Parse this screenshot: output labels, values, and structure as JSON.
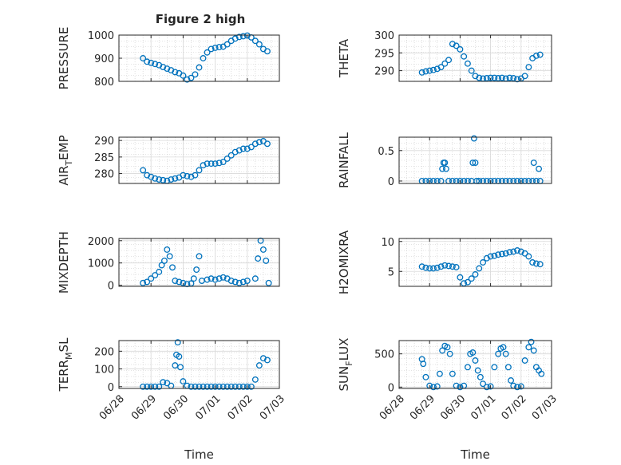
{
  "figure": {
    "title": "Figure 2 high"
  },
  "chart_data": [
    {
      "id": "pressure",
      "type": "scatter",
      "title": "Figure 2 high",
      "ylabel": "PRESSURE",
      "ylabel_sub": "",
      "xlabel": "",
      "xlim": [
        "2019-06-28",
        "2019-07-03"
      ],
      "ylim": [
        800,
        1000
      ],
      "yticks": [
        800,
        900,
        1000
      ],
      "xticks_visible": false,
      "grid": true,
      "x": [
        "06-28 18:00",
        "06-28 21:00",
        "06-29 00:00",
        "06-29 03:00",
        "06-29 06:00",
        "06-29 09:00",
        "06-29 12:00",
        "06-29 15:00",
        "06-29 18:00",
        "06-29 21:00",
        "06-30 00:00",
        "06-30 03:00",
        "06-30 06:00",
        "06-30 09:00",
        "06-30 12:00",
        "06-30 15:00",
        "06-30 18:00",
        "06-30 21:00",
        "07-01 00:00",
        "07-01 03:00",
        "07-01 06:00",
        "07-01 09:00",
        "07-01 12:00",
        "07-01 15:00",
        "07-01 18:00",
        "07-01 21:00",
        "07-02 00:00",
        "07-02 03:00",
        "07-02 06:00",
        "07-02 09:00",
        "07-02 12:00",
        "07-02 15:00"
      ],
      "y": [
        900,
        885,
        880,
        875,
        870,
        862,
        855,
        848,
        840,
        835,
        825,
        808,
        815,
        830,
        860,
        900,
        925,
        940,
        945,
        948,
        950,
        960,
        975,
        985,
        992,
        995,
        998,
        990,
        975,
        960,
        940,
        930
      ]
    },
    {
      "id": "theta",
      "type": "scatter",
      "ylabel": "THETA",
      "ylabel_sub": "",
      "xlabel": "",
      "xlim": [
        "2019-06-28",
        "2019-07-03"
      ],
      "ylim": [
        287,
        300
      ],
      "yticks": [
        290,
        295,
        300
      ],
      "xticks_visible": false,
      "grid": true,
      "x": [
        "06-28 18:00",
        "06-28 21:00",
        "06-29 00:00",
        "06-29 03:00",
        "06-29 06:00",
        "06-29 09:00",
        "06-29 12:00",
        "06-29 15:00",
        "06-29 18:00",
        "06-29 21:00",
        "06-30 00:00",
        "06-30 03:00",
        "06-30 06:00",
        "06-30 09:00",
        "06-30 12:00",
        "06-30 15:00",
        "06-30 18:00",
        "06-30 21:00",
        "07-01 00:00",
        "07-01 03:00",
        "07-01 06:00",
        "07-01 09:00",
        "07-01 12:00",
        "07-01 15:00",
        "07-01 18:00",
        "07-01 21:00",
        "07-02 00:00",
        "07-02 03:00",
        "07-02 06:00",
        "07-02 09:00",
        "07-02 12:00",
        "07-02 15:00"
      ],
      "y": [
        289.5,
        289.8,
        290.0,
        290.2,
        290.5,
        291.0,
        292.0,
        293.0,
        297.5,
        297.0,
        296.0,
        294.0,
        292.0,
        290.0,
        288.5,
        288.0,
        287.8,
        287.9,
        288.0,
        288.0,
        287.9,
        288.0,
        287.8,
        288.0,
        287.9,
        287.6,
        287.8,
        288.5,
        291.0,
        293.5,
        294.2,
        294.5
      ]
    },
    {
      "id": "air_temp",
      "type": "scatter",
      "ylabel": "AIR",
      "ylabel_sub": "T",
      "ylabel_suffix": "EMP",
      "xlabel": "",
      "xlim": [
        "2019-06-28",
        "2019-07-03"
      ],
      "ylim": [
        277,
        291
      ],
      "yticks": [
        280,
        285,
        290
      ],
      "xticks_visible": false,
      "grid": true,
      "x": [
        "06-28 18:00",
        "06-28 21:00",
        "06-29 00:00",
        "06-29 03:00",
        "06-29 06:00",
        "06-29 09:00",
        "06-29 12:00",
        "06-29 15:00",
        "06-29 18:00",
        "06-29 21:00",
        "06-30 00:00",
        "06-30 03:00",
        "06-30 06:00",
        "06-30 09:00",
        "06-30 12:00",
        "06-30 15:00",
        "06-30 18:00",
        "06-30 21:00",
        "07-01 00:00",
        "07-01 03:00",
        "07-01 06:00",
        "07-01 09:00",
        "07-01 12:00",
        "07-01 15:00",
        "07-01 18:00",
        "07-01 21:00",
        "07-02 00:00",
        "07-02 03:00",
        "07-02 06:00",
        "07-02 09:00",
        "07-02 12:00",
        "07-02 15:00"
      ],
      "y": [
        281.0,
        279.5,
        279.0,
        278.5,
        278.2,
        278.0,
        277.8,
        278.2,
        278.5,
        278.8,
        279.5,
        279.2,
        279.0,
        279.5,
        281.0,
        282.5,
        283.0,
        283.0,
        283.0,
        283.2,
        283.5,
        284.5,
        285.5,
        286.5,
        287.0,
        287.5,
        287.5,
        288.0,
        289.0,
        289.5,
        289.8,
        289.0
      ]
    },
    {
      "id": "rainfall",
      "type": "scatter",
      "ylabel": "RAINFALL",
      "ylabel_sub": "",
      "xlabel": "",
      "xlim": [
        "2019-06-28",
        "2019-07-03"
      ],
      "ylim": [
        -0.04,
        0.72
      ],
      "yticks": [
        0,
        0.5
      ],
      "ytick_labels": [
        "0",
        "0.5"
      ],
      "xticks_visible": false,
      "grid": true,
      "x": [
        "06-28 18:00",
        "06-28 21:00",
        "06-29 00:00",
        "06-29 03:00",
        "06-29 06:00",
        "06-29 09:00",
        "06-29 10:00",
        "06-29 11:00",
        "06-29 12:00",
        "06-29 13:00",
        "06-29 15:00",
        "06-29 18:00",
        "06-29 21:00",
        "06-30 00:00",
        "06-30 03:00",
        "06-30 06:00",
        "06-30 09:00",
        "06-30 10:00",
        "06-30 11:00",
        "06-30 12:00",
        "06-30 13:00",
        "06-30 15:00",
        "06-30 18:00",
        "06-30 21:00",
        "07-01 00:00",
        "07-01 03:00",
        "07-01 06:00",
        "07-01 09:00",
        "07-01 12:00",
        "07-01 15:00",
        "07-01 18:00",
        "07-01 21:00",
        "07-02 00:00",
        "07-02 03:00",
        "07-02 06:00",
        "07-02 09:00",
        "07-02 12:00",
        "07-02 15:00",
        "07-02 10:00",
        "07-02 14:00"
      ],
      "y": [
        0,
        0,
        0,
        0,
        0,
        0,
        0.2,
        0.3,
        0.3,
        0.2,
        0,
        0,
        0,
        0,
        0,
        0,
        0,
        0.3,
        0.7,
        0.3,
        0,
        0,
        0,
        0,
        0,
        0,
        0,
        0,
        0,
        0,
        0,
        0,
        0,
        0,
        0,
        0,
        0,
        0,
        0.3,
        0.2
      ]
    },
    {
      "id": "mixdepth",
      "type": "scatter",
      "ylabel": "MIXDEPTH",
      "ylabel_sub": "",
      "xlabel": "",
      "xlim": [
        "2019-06-28",
        "2019-07-03"
      ],
      "ylim": [
        -50,
        2100
      ],
      "yticks": [
        0,
        1000,
        2000
      ],
      "xticks_visible": false,
      "grid": true,
      "x": [
        "06-28 18:00",
        "06-28 21:00",
        "06-29 00:00",
        "06-29 03:00",
        "06-29 06:00",
        "06-29 08:00",
        "06-29 10:00",
        "06-29 12:00",
        "06-29 14:00",
        "06-29 16:00",
        "06-29 18:00",
        "06-29 21:00",
        "06-30 00:00",
        "06-30 03:00",
        "06-30 06:00",
        "06-30 08:00",
        "06-30 10:00",
        "06-30 12:00",
        "06-30 14:00",
        "06-30 18:00",
        "06-30 21:00",
        "07-01 00:00",
        "07-01 03:00",
        "07-01 06:00",
        "07-01 09:00",
        "07-01 12:00",
        "07-01 15:00",
        "07-01 18:00",
        "07-01 21:00",
        "07-02 00:00",
        "07-02 06:00",
        "07-02 08:00",
        "07-02 10:00",
        "07-02 12:00",
        "07-02 14:00",
        "07-02 16:00"
      ],
      "y": [
        100,
        150,
        300,
        450,
        600,
        900,
        1100,
        1600,
        1300,
        800,
        200,
        150,
        100,
        50,
        80,
        300,
        700,
        1300,
        200,
        250,
        300,
        250,
        300,
        350,
        300,
        200,
        150,
        100,
        150,
        200,
        300,
        1200,
        2000,
        1600,
        1100,
        100
      ]
    },
    {
      "id": "h2omixra",
      "type": "scatter",
      "ylabel": "H2OMIXRA",
      "ylabel_sub": "",
      "xlabel": "",
      "xlim": [
        "2019-06-28",
        "2019-07-03"
      ],
      "ylim": [
        2.5,
        10.5
      ],
      "yticks": [
        5,
        10
      ],
      "xticks_visible": false,
      "grid": true,
      "x": [
        "06-28 18:00",
        "06-28 21:00",
        "06-29 00:00",
        "06-29 03:00",
        "06-29 06:00",
        "06-29 09:00",
        "06-29 12:00",
        "06-29 15:00",
        "06-29 18:00",
        "06-29 21:00",
        "06-30 00:00",
        "06-30 03:00",
        "06-30 06:00",
        "06-30 09:00",
        "06-30 12:00",
        "06-30 15:00",
        "06-30 18:00",
        "06-30 21:00",
        "07-01 00:00",
        "07-01 03:00",
        "07-01 06:00",
        "07-01 09:00",
        "07-01 12:00",
        "07-01 15:00",
        "07-01 18:00",
        "07-01 21:00",
        "07-02 00:00",
        "07-02 03:00",
        "07-02 06:00",
        "07-02 09:00",
        "07-02 12:00",
        "07-02 15:00"
      ],
      "y": [
        5.8,
        5.6,
        5.5,
        5.5,
        5.6,
        5.8,
        6.0,
        5.9,
        5.8,
        5.7,
        4.0,
        3.0,
        3.2,
        3.8,
        4.5,
        5.5,
        6.5,
        7.2,
        7.5,
        7.6,
        7.8,
        7.9,
        8.0,
        8.2,
        8.3,
        8.5,
        8.3,
        8.0,
        7.5,
        6.5,
        6.3,
        6.2
      ]
    },
    {
      "id": "terr_msl",
      "type": "scatter",
      "ylabel": "TERR",
      "ylabel_sub": "M",
      "ylabel_suffix": "SL",
      "xlabel": "Time",
      "xlim": [
        "2019-06-28",
        "2019-07-03"
      ],
      "ylim": [
        -10,
        260
      ],
      "yticks": [
        0,
        100,
        200
      ],
      "xticks_visible": true,
      "grid": true,
      "xtick_labels": [
        "06/28",
        "06/29",
        "06/30",
        "07/01",
        "07/02",
        "07/03"
      ],
      "x": [
        "06-28 18:00",
        "06-28 21:00",
        "06-29 00:00",
        "06-29 03:00",
        "06-29 06:00",
        "06-29 09:00",
        "06-29 12:00",
        "06-29 15:00",
        "06-29 18:00",
        "06-29 19:00",
        "06-29 20:00",
        "06-29 21:00",
        "06-29 22:00",
        "06-30 00:00",
        "06-30 03:00",
        "06-30 06:00",
        "06-30 09:00",
        "06-30 12:00",
        "06-30 15:00",
        "06-30 18:00",
        "06-30 21:00",
        "07-01 00:00",
        "07-01 03:00",
        "07-01 06:00",
        "07-01 09:00",
        "07-01 12:00",
        "07-01 15:00",
        "07-01 18:00",
        "07-01 21:00",
        "07-02 00:00",
        "07-02 03:00",
        "07-02 06:00",
        "07-02 09:00",
        "07-02 12:00",
        "07-02 15:00"
      ],
      "y": [
        0,
        0,
        0,
        0,
        0,
        25,
        20,
        5,
        120,
        180,
        250,
        170,
        110,
        30,
        5,
        0,
        0,
        0,
        0,
        0,
        0,
        0,
        0,
        0,
        0,
        0,
        0,
        0,
        0,
        0,
        0,
        40,
        120,
        160,
        150
      ]
    },
    {
      "id": "sun_flux",
      "type": "scatter",
      "ylabel": "SUN",
      "ylabel_sub": "F",
      "ylabel_suffix": "LUX",
      "xlabel": "Time",
      "xlim": [
        "2019-06-28",
        "2019-07-03"
      ],
      "ylim": [
        -20,
        700
      ],
      "yticks": [
        0,
        500
      ],
      "xticks_visible": true,
      "grid": true,
      "xtick_labels": [
        "06/28",
        "06/29",
        "06/30",
        "07/01",
        "07/02",
        "07/03"
      ],
      "x": [
        "06-28 18:00",
        "06-28 19:00",
        "06-28 21:00",
        "06-29 00:00",
        "06-29 03:00",
        "06-29 06:00",
        "06-29 08:00",
        "06-29 10:00",
        "06-29 12:00",
        "06-29 14:00",
        "06-29 16:00",
        "06-29 18:00",
        "06-29 21:00",
        "06-30 00:00",
        "06-30 03:00",
        "06-30 06:00",
        "06-30 08:00",
        "06-30 10:00",
        "06-30 12:00",
        "06-30 14:00",
        "06-30 16:00",
        "06-30 18:00",
        "06-30 21:00",
        "07-01 00:00",
        "07-01 03:00",
        "07-01 06:00",
        "07-01 08:00",
        "07-01 10:00",
        "07-01 12:00",
        "07-01 14:00",
        "07-01 16:00",
        "07-01 18:00",
        "07-01 21:00",
        "07-02 00:00",
        "07-02 03:00",
        "07-02 06:00",
        "07-02 08:00",
        "07-02 10:00",
        "07-02 12:00",
        "07-02 14:00",
        "07-02 16:00"
      ],
      "y": [
        420,
        350,
        150,
        20,
        0,
        10,
        200,
        550,
        620,
        600,
        500,
        200,
        20,
        0,
        20,
        300,
        500,
        520,
        400,
        250,
        150,
        50,
        0,
        10,
        300,
        500,
        580,
        600,
        500,
        300,
        100,
        20,
        0,
        10,
        400,
        600,
        680,
        550,
        300,
        250,
        200
      ]
    }
  ],
  "colors": {
    "marker": "#0072bd",
    "axes": "#262626",
    "grid": "#c8c8c8"
  }
}
